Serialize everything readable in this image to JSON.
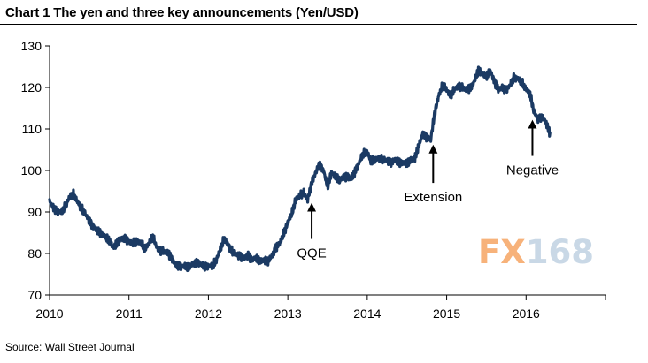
{
  "title": "Chart 1 The yen and three key announcements (Yen/USD)",
  "source": "Source: Wall Street Journal",
  "watermark": {
    "part_a": "FX",
    "part_b": "168",
    "color_a": "#f7b27a",
    "color_b": "#c9d8e6"
  },
  "chart_data": {
    "type": "line",
    "title": "Chart 1 The yen and three key announcements (Yen/USD)",
    "xlabel": "",
    "ylabel": "",
    "xlim": [
      2010,
      2017
    ],
    "ylim": [
      70,
      130
    ],
    "x_ticks": [
      2010,
      2011,
      2012,
      2013,
      2014,
      2015,
      2016
    ],
    "x_tick_labels": [
      "2010",
      "2011",
      "2012",
      "2013",
      "2014",
      "2015",
      "2016"
    ],
    "y_ticks": [
      70,
      80,
      90,
      100,
      110,
      120,
      130
    ],
    "y_tick_labels": [
      "70",
      "80",
      "90",
      "100",
      "110",
      "120",
      "130"
    ],
    "grid": false,
    "line_color": "#1b3a63",
    "series": [
      {
        "name": "Yen/USD",
        "points": [
          [
            2010.0,
            92.5
          ],
          [
            2010.05,
            91.0
          ],
          [
            2010.1,
            90.2
          ],
          [
            2010.15,
            89.8
          ],
          [
            2010.2,
            91.5
          ],
          [
            2010.25,
            93.5
          ],
          [
            2010.3,
            94.2
          ],
          [
            2010.35,
            92.5
          ],
          [
            2010.4,
            91.0
          ],
          [
            2010.45,
            89.5
          ],
          [
            2010.5,
            88.0
          ],
          [
            2010.55,
            86.5
          ],
          [
            2010.6,
            85.5
          ],
          [
            2010.65,
            84.8
          ],
          [
            2010.7,
            84.0
          ],
          [
            2010.75,
            83.0
          ],
          [
            2010.8,
            81.5
          ],
          [
            2010.85,
            82.5
          ],
          [
            2010.9,
            83.5
          ],
          [
            2010.95,
            83.8
          ],
          [
            2011.0,
            82.8
          ],
          [
            2011.05,
            82.5
          ],
          [
            2011.1,
            83.0
          ],
          [
            2011.15,
            82.5
          ],
          [
            2011.2,
            81.0
          ],
          [
            2011.25,
            82.5
          ],
          [
            2011.3,
            84.0
          ],
          [
            2011.35,
            81.5
          ],
          [
            2011.4,
            80.8
          ],
          [
            2011.45,
            80.5
          ],
          [
            2011.5,
            80.0
          ],
          [
            2011.55,
            78.5
          ],
          [
            2011.6,
            77.0
          ],
          [
            2011.65,
            76.8
          ],
          [
            2011.7,
            77.0
          ],
          [
            2011.75,
            76.5
          ],
          [
            2011.8,
            77.5
          ],
          [
            2011.85,
            77.8
          ],
          [
            2011.9,
            77.5
          ],
          [
            2011.95,
            77.0
          ],
          [
            2012.0,
            77.0
          ],
          [
            2012.05,
            76.8
          ],
          [
            2012.1,
            78.5
          ],
          [
            2012.15,
            81.0
          ],
          [
            2012.2,
            83.5
          ],
          [
            2012.25,
            82.0
          ],
          [
            2012.3,
            80.5
          ],
          [
            2012.35,
            79.8
          ],
          [
            2012.4,
            79.5
          ],
          [
            2012.45,
            78.8
          ],
          [
            2012.5,
            79.5
          ],
          [
            2012.55,
            78.5
          ],
          [
            2012.6,
            78.8
          ],
          [
            2012.65,
            78.0
          ],
          [
            2012.7,
            78.5
          ],
          [
            2012.75,
            78.0
          ],
          [
            2012.8,
            79.5
          ],
          [
            2012.85,
            81.5
          ],
          [
            2012.9,
            82.5
          ],
          [
            2012.95,
            85.0
          ],
          [
            2013.0,
            87.5
          ],
          [
            2013.05,
            89.5
          ],
          [
            2013.1,
            93.0
          ],
          [
            2013.15,
            94.0
          ],
          [
            2013.2,
            94.5
          ],
          [
            2013.25,
            93.0
          ],
          [
            2013.3,
            97.0
          ],
          [
            2013.35,
            99.5
          ],
          [
            2013.4,
            101.5
          ],
          [
            2013.45,
            100.0
          ],
          [
            2013.5,
            96.0
          ],
          [
            2013.55,
            99.5
          ],
          [
            2013.6,
            98.5
          ],
          [
            2013.65,
            97.5
          ],
          [
            2013.7,
            98.5
          ],
          [
            2013.75,
            98.5
          ],
          [
            2013.8,
            98.0
          ],
          [
            2013.85,
            100.0
          ],
          [
            2013.9,
            102.0
          ],
          [
            2013.95,
            104.0
          ],
          [
            2014.0,
            104.5
          ],
          [
            2014.05,
            102.0
          ],
          [
            2014.1,
            102.5
          ],
          [
            2014.15,
            103.0
          ],
          [
            2014.2,
            102.5
          ],
          [
            2014.25,
            102.5
          ],
          [
            2014.3,
            102.0
          ],
          [
            2014.35,
            102.5
          ],
          [
            2014.4,
            102.0
          ],
          [
            2014.45,
            101.8
          ],
          [
            2014.5,
            101.5
          ],
          [
            2014.55,
            102.5
          ],
          [
            2014.6,
            103.0
          ],
          [
            2014.65,
            106.0
          ],
          [
            2014.7,
            109.0
          ],
          [
            2014.75,
            108.0
          ],
          [
            2014.8,
            107.5
          ],
          [
            2014.85,
            114.0
          ],
          [
            2014.9,
            118.0
          ],
          [
            2014.95,
            120.5
          ],
          [
            2015.0,
            119.5
          ],
          [
            2015.05,
            118.0
          ],
          [
            2015.1,
            119.5
          ],
          [
            2015.15,
            120.5
          ],
          [
            2015.2,
            120.0
          ],
          [
            2015.25,
            119.5
          ],
          [
            2015.3,
            120.0
          ],
          [
            2015.35,
            121.5
          ],
          [
            2015.4,
            124.0
          ],
          [
            2015.45,
            123.5
          ],
          [
            2015.5,
            122.5
          ],
          [
            2015.55,
            124.0
          ],
          [
            2015.6,
            121.5
          ],
          [
            2015.65,
            119.5
          ],
          [
            2015.7,
            120.0
          ],
          [
            2015.75,
            119.5
          ],
          [
            2015.8,
            120.5
          ],
          [
            2015.85,
            122.5
          ],
          [
            2015.9,
            122.0
          ],
          [
            2015.95,
            121.0
          ],
          [
            2016.0,
            119.5
          ],
          [
            2016.05,
            118.5
          ],
          [
            2016.1,
            114.0
          ],
          [
            2016.15,
            112.5
          ],
          [
            2016.2,
            113.0
          ],
          [
            2016.25,
            111.5
          ],
          [
            2016.3,
            109.0
          ]
        ]
      }
    ],
    "annotations": [
      {
        "text": "QQE",
        "x": 2013.3,
        "y": 92.0,
        "arrow_tail_y": 83.5
      },
      {
        "text": "Extension",
        "x": 2014.83,
        "y": 106.0,
        "arrow_tail_y": 97.0
      },
      {
        "text": "Negative",
        "x": 2016.08,
        "y": 112.0,
        "arrow_tail_y": 103.5
      }
    ]
  }
}
